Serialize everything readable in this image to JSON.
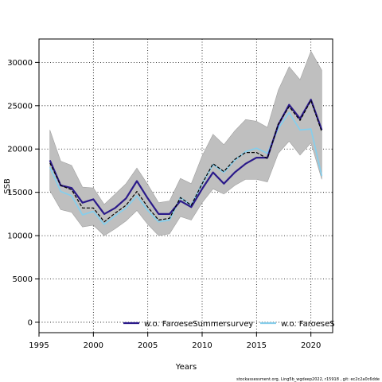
{
  "chart_data": {
    "type": "line",
    "xlabel": "Years",
    "ylabel": "SSB",
    "xlim": [
      1995,
      2022
    ],
    "ylim": [
      -1200,
      32700
    ],
    "x_ticks": [
      1995,
      2000,
      2005,
      2010,
      2015,
      2020
    ],
    "y_ticks": [
      0,
      5000,
      10000,
      15000,
      20000,
      25000,
      30000
    ],
    "grid": true,
    "legend_position": "bottom-right",
    "colors": {
      "band": "#bfbfbf",
      "base": "#000000",
      "summer": "#2b1a8a",
      "other": "#87ceeb"
    },
    "x": [
      1996,
      1997,
      1998,
      1999,
      2000,
      2001,
      2002,
      2003,
      2004,
      2005,
      2006,
      2007,
      2008,
      2009,
      2010,
      2011,
      2012,
      2013,
      2014,
      2015,
      2016,
      2017,
      2018,
      2019,
      2020,
      2021
    ],
    "band": {
      "lower": [
        15200,
        13000,
        12700,
        11000,
        11200,
        10000,
        10800,
        11700,
        12900,
        11300,
        10000,
        10200,
        12200,
        11800,
        13800,
        15400,
        14800,
        15800,
        16500,
        16500,
        16200,
        19500,
        20900,
        19300,
        20700,
        16500
      ],
      "upper": [
        22200,
        18600,
        18100,
        15600,
        15500,
        13600,
        14800,
        16000,
        17800,
        15900,
        13800,
        14000,
        16600,
        16000,
        19200,
        21700,
        20500,
        22100,
        23400,
        23200,
        22500,
        26800,
        29500,
        28000,
        31300,
        29100
      ]
    },
    "series": [
      {
        "key": "base",
        "values": [
          18400,
          15800,
          15300,
          13200,
          13200,
          11600,
          12600,
          13500,
          15100,
          13300,
          11800,
          12000,
          14400,
          13500,
          16000,
          18300,
          17400,
          18800,
          19600,
          19600,
          18900,
          22900,
          24900,
          23300,
          25600,
          22000
        ]
      },
      {
        "key": "summer",
        "name": "w.o. FaroeseSummersurvey",
        "values": [
          18700,
          15800,
          15500,
          13800,
          14200,
          12500,
          13200,
          14300,
          16300,
          14300,
          12500,
          12500,
          14000,
          13300,
          15400,
          17300,
          16000,
          17300,
          18300,
          19000,
          19000,
          22800,
          25100,
          23500,
          25700,
          22200
        ]
      },
      {
        "key": "other",
        "name": "w.o. FaroeseS",
        "values": [
          17900,
          15100,
          14600,
          12400,
          12800,
          11300,
          12300,
          13200,
          14600,
          12900,
          11600,
          11800,
          14400,
          13500,
          16000,
          18200,
          17300,
          18700,
          19700,
          20100,
          19500,
          22400,
          24200,
          22200,
          22300,
          16900
        ]
      }
    ]
  },
  "footer": "stockassessment.org, Ling5b_wgdeep2022, r15918 , git: ec2c2a0c6dde"
}
